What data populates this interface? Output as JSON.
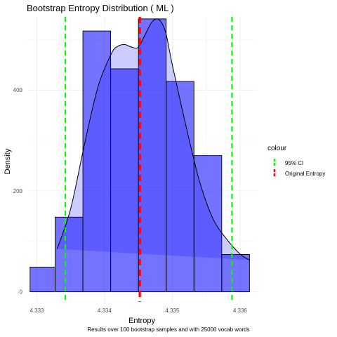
{
  "chart_data": {
    "type": "histogram",
    "title": "Bootstrap Entropy Distribution ( ML )",
    "xlabel": "Entropy",
    "ylabel": "Density",
    "caption": "Results over 100 bootstrap samples and with 25000 vocab words",
    "xlim": [
      4.33285,
      4.33625
    ],
    "ylim": [
      -20,
      545
    ],
    "x_ticks": [
      4.333,
      4.334,
      4.335,
      4.336
    ],
    "x_tick_labels": [
      "4.333",
      "4.334",
      "4.335",
      "4.336"
    ],
    "y_ticks": [
      0,
      200,
      400
    ],
    "y_tick_labels": [
      "0",
      "200",
      "400"
    ],
    "grid": true,
    "bins": [
      {
        "x0": 4.3329,
        "x1": 4.33327,
        "density": 49
      },
      {
        "x0": 4.33327,
        "x1": 4.33368,
        "density": 148
      },
      {
        "x0": 4.33368,
        "x1": 4.33409,
        "density": 517
      },
      {
        "x0": 4.33409,
        "x1": 4.3345,
        "density": 442
      },
      {
        "x0": 4.3345,
        "x1": 4.33491,
        "density": 541
      },
      {
        "x0": 4.33491,
        "x1": 4.33532,
        "density": 417
      },
      {
        "x0": 4.33532,
        "x1": 4.33573,
        "density": 270
      },
      {
        "x0": 4.33573,
        "x1": 4.33614,
        "density": 74
      }
    ],
    "bar_fill": "#0000ff",
    "bar_opacity": 0.55,
    "bar_stroke": "#000000",
    "density_curve": {
      "x": [
        4.3333,
        4.3335,
        4.3337,
        4.3339,
        4.3341,
        4.3342,
        4.3343,
        4.3344,
        4.3345,
        4.3346,
        4.3347,
        4.3348,
        4.3349,
        4.335,
        4.3352,
        4.3354,
        4.3356,
        4.3358,
        4.336,
        4.33614
      ],
      "y": [
        85,
        165,
        290,
        405,
        472,
        487,
        490,
        485,
        485,
        510,
        535,
        540,
        515,
        450,
        330,
        220,
        145,
        105,
        75,
        63
      ],
      "fill": "#0000ff",
      "fill_opacity": 0.2,
      "stroke": "#000000"
    },
    "vlines": [
      {
        "series": "95% CI",
        "x": 4.33342,
        "color": "#00ff00"
      },
      {
        "series": "95% CI",
        "x": 4.33588,
        "color": "#00ff00"
      },
      {
        "series": "Original Entropy",
        "x": 4.33452,
        "color": "#ff0000"
      }
    ],
    "legend": {
      "title": "colour",
      "placement": "right",
      "entries": [
        {
          "label": "95% CI",
          "color": "#00ff00"
        },
        {
          "label": "Original Entropy",
          "color": "#ff0000"
        }
      ]
    }
  }
}
